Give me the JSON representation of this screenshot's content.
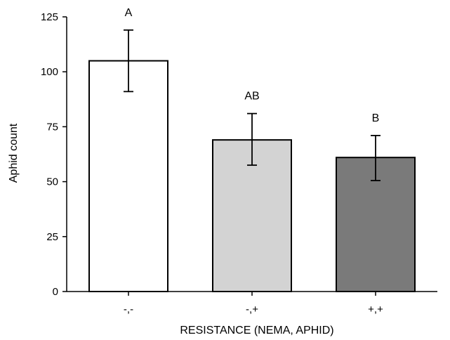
{
  "chart_data": {
    "type": "bar",
    "title": "",
    "xlabel": "RESISTANCE (NEMA, APHID)",
    "ylabel": "Aphid count",
    "ylim": [
      0,
      125
    ],
    "yticks": [
      0,
      25,
      50,
      75,
      100,
      125
    ],
    "grid": false,
    "categories": [
      "-,-",
      "-,+",
      "+,+"
    ],
    "values": [
      105,
      69,
      61
    ],
    "error_low": [
      91,
      57.5,
      50.5
    ],
    "error_high": [
      119,
      81,
      71
    ],
    "significance_labels": [
      "A",
      "AB",
      "B"
    ],
    "colors": [
      "#ffffff",
      "#d3d3d3",
      "#7a7a7a"
    ]
  }
}
